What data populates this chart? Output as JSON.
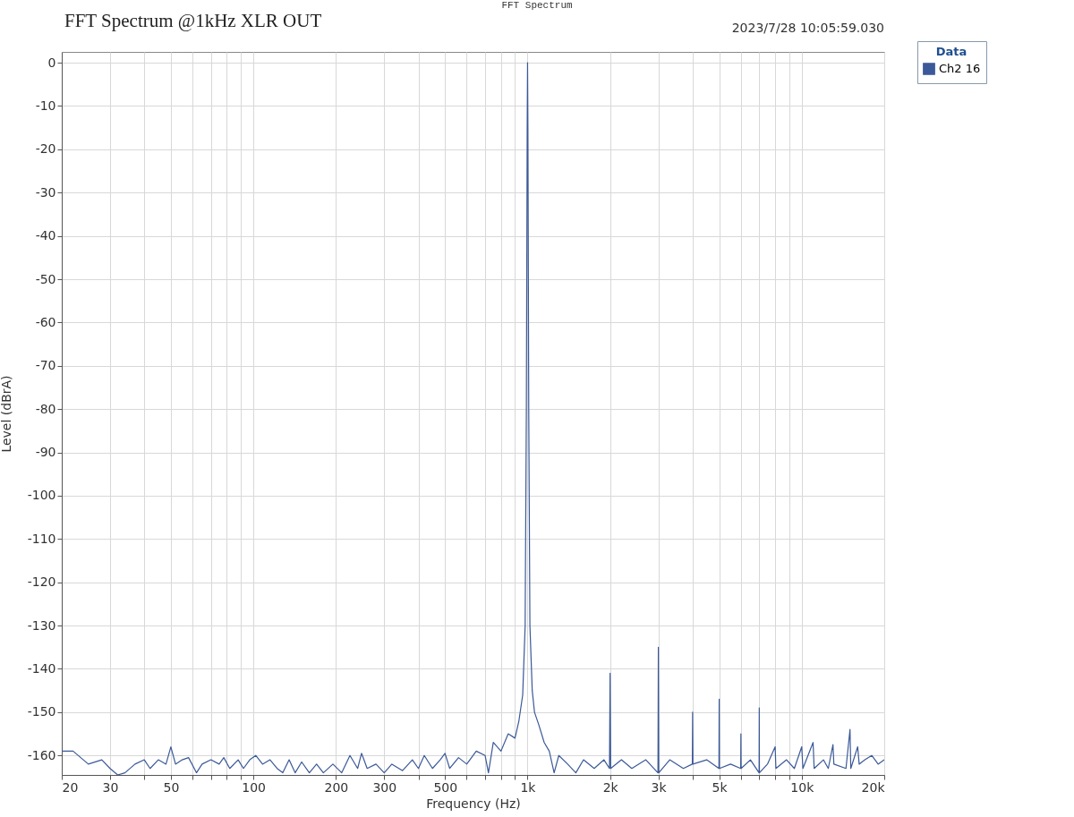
{
  "chart_data": {
    "type": "line",
    "title": "FFT Spectrum @1kHz XLR OUT",
    "xlabel": "Frequency (Hz)",
    "ylabel": "Level (dBrA)",
    "legend_title": "Data",
    "legend": "top right",
    "grid": true,
    "marker": "none",
    "line_style": "solid",
    "log": "x",
    "annotations": [
      "FFT Spectrum",
      "2023/7/28 10:05:59.030"
    ],
    "xlim": [
      20,
      20000
    ],
    "ylim": [
      -164.5,
      2.5
    ],
    "xticks": [
      20,
      30,
      {
        "value": 40,
        "label": null
      },
      50,
      {
        "value": 60,
        "label": null
      },
      {
        "value": 70,
        "label": null
      },
      {
        "value": 80,
        "label": null
      },
      {
        "value": 90,
        "label": null
      },
      100,
      200,
      300,
      {
        "value": 400,
        "label": null
      },
      500,
      {
        "value": 600,
        "label": null
      },
      {
        "value": 700,
        "label": null
      },
      {
        "value": 800,
        "label": null
      },
      {
        "value": 900,
        "label": null
      },
      {
        "value": 1000,
        "label": "1k"
      },
      {
        "value": 2000,
        "label": "2k"
      },
      {
        "value": 3000,
        "label": "3k"
      },
      {
        "value": 4000,
        "label": null
      },
      {
        "value": 5000,
        "label": "5k"
      },
      {
        "value": 6000,
        "label": null
      },
      {
        "value": 7000,
        "label": null
      },
      {
        "value": 8000,
        "label": null
      },
      {
        "value": 9000,
        "label": null
      },
      {
        "value": 10000,
        "label": "10k"
      },
      {
        "value": 20000,
        "label": "20k"
      }
    ],
    "yticks": [
      0,
      -10,
      -20,
      -30,
      -40,
      -50,
      -60,
      -70,
      -80,
      -90,
      -100,
      -110,
      -120,
      -130,
      -140,
      -150,
      -160
    ],
    "series": [
      {
        "name": "Ch2 16",
        "color": "#3b5998",
        "x": [
          20,
          22,
          25,
          28,
          30,
          32,
          34,
          37,
          40,
          42,
          45,
          48,
          50,
          52,
          55,
          58,
          62,
          65,
          70,
          75,
          78,
          82,
          88,
          92,
          97,
          102,
          108,
          115,
          122,
          128,
          135,
          142,
          150,
          160,
          170,
          180,
          195,
          210,
          225,
          240,
          248,
          260,
          280,
          300,
          320,
          350,
          380,
          400,
          420,
          450,
          480,
          500,
          520,
          560,
          600,
          650,
          700,
          720,
          750,
          800,
          850,
          900,
          930,
          960,
          980,
          990,
          997,
          1000,
          1003,
          1010,
          1020,
          1040,
          1060,
          1100,
          1150,
          1200,
          1250,
          1300,
          1400,
          1500,
          1600,
          1750,
          1900,
          1990,
          2000,
          2010,
          2200,
          2400,
          2700,
          2990,
          3000,
          3010,
          3300,
          3700,
          3990,
          4000,
          4010,
          4500,
          4990,
          5000,
          5010,
          5500,
          5990,
          6000,
          6010,
          6500,
          6990,
          7000,
          7010,
          7500,
          8000,
          8050,
          8800,
          9400,
          10000,
          10100,
          11000,
          11100,
          12000,
          12500,
          13000,
          13100,
          14500,
          15000,
          15100,
          16000,
          16200,
          17000,
          18000,
          19000,
          20000
        ],
        "values": [
          -159,
          -159,
          -162,
          -161,
          -163,
          -164.5,
          -164,
          -162,
          -161,
          -163,
          -161,
          -162,
          -158,
          -162,
          -161,
          -160.5,
          -164,
          -162,
          -161,
          -162,
          -160.5,
          -163,
          -161,
          -163,
          -161,
          -160,
          -162,
          -161,
          -163,
          -164,
          -161,
          -164,
          -161.5,
          -164,
          -162,
          -164,
          -162,
          -164,
          -160,
          -163,
          -159.5,
          -163,
          -162,
          -164,
          -162,
          -163.5,
          -161,
          -163,
          -160,
          -163,
          -161,
          -159.5,
          -163,
          -160.5,
          -162,
          -159,
          -160,
          -164,
          -157,
          -159,
          -155,
          -156,
          -152,
          -146,
          -130,
          -80,
          -15,
          0,
          -15,
          -80,
          -130,
          -145,
          -150,
          -153,
          -157,
          -159,
          -164,
          -160,
          -162,
          -164,
          -161,
          -163,
          -161,
          -163,
          -141,
          -163,
          -161,
          -163,
          -161,
          -164,
          -135,
          -164,
          -161,
          -163,
          -162,
          -150,
          -162,
          -161,
          -163,
          -147,
          -163,
          -162,
          -163,
          -155,
          -163,
          -161,
          -164,
          -149,
          -164,
          -162,
          -158,
          -163,
          -161,
          -163,
          -158,
          -163,
          -157,
          -163,
          -161,
          -163,
          -157.5,
          -162,
          -163,
          -154,
          -163,
          -158,
          -162,
          -161,
          -160,
          -162,
          -161
        ]
      }
    ]
  }
}
